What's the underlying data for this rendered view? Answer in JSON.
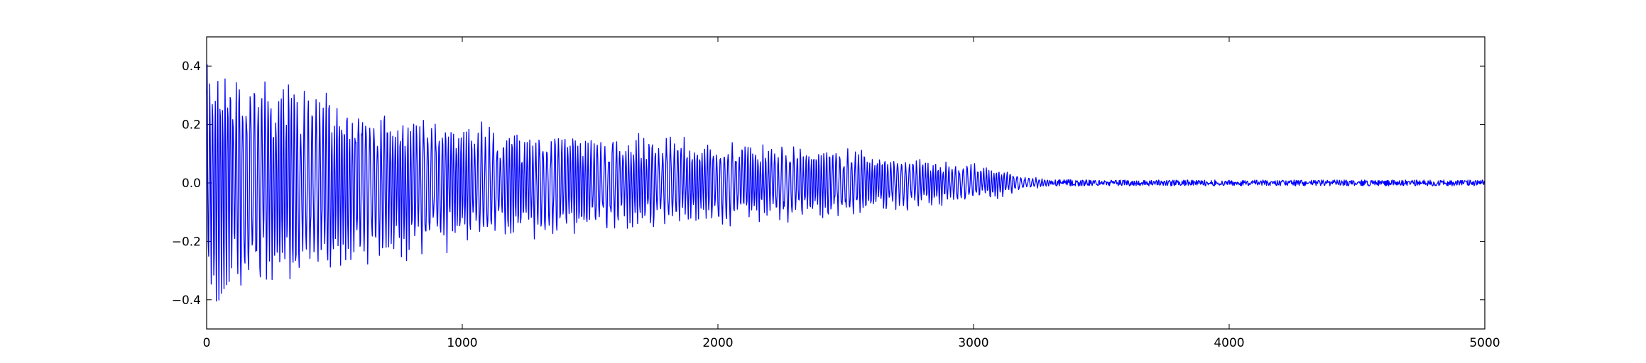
{
  "chart_data": {
    "type": "line",
    "title": "",
    "xlabel": "",
    "ylabel": "",
    "xlim": [
      0,
      5000
    ],
    "ylim": [
      -0.5,
      0.5
    ],
    "grid": false,
    "legend": "none",
    "x_ticks": [
      0,
      1000,
      2000,
      3000,
      4000,
      5000
    ],
    "x_tick_labels": [
      "0",
      "1000",
      "2000",
      "3000",
      "4000",
      "5000"
    ],
    "y_ticks": [
      -0.4,
      -0.2,
      0.0,
      0.2,
      0.4
    ],
    "y_tick_labels": [
      "−0.4",
      "−0.2",
      "0.0",
      "0.2",
      "0.4"
    ],
    "series": [
      {
        "color": "#0000ff",
        "description_visible": false,
        "samples": 5000,
        "envelope": {
          "x": [
            0,
            20,
            50,
            100,
            200,
            400,
            600,
            800,
            1000,
            1200,
            1400,
            1600,
            1800,
            2000,
            2200,
            2400,
            2600,
            2800,
            3000,
            3100,
            3150,
            3200,
            3300,
            3500,
            4000,
            4500,
            5000
          ],
          "amplitude": [
            0.46,
            0.42,
            0.42,
            0.4,
            0.36,
            0.32,
            0.28,
            0.25,
            0.2,
            0.18,
            0.17,
            0.16,
            0.15,
            0.14,
            0.13,
            0.12,
            0.1,
            0.08,
            0.06,
            0.05,
            0.04,
            0.02,
            0.012,
            0.01,
            0.01,
            0.01,
            0.01
          ]
        }
      }
    ]
  }
}
